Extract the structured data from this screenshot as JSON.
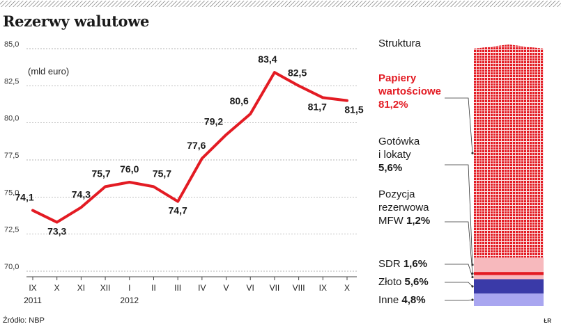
{
  "title": "Rezerwy walutowe",
  "source": "Źródło: NBP",
  "author": "ŁR",
  "colors": {
    "line": "#e31b23",
    "bar_red": "#e31b23",
    "bar_pink": "#f7b9bd",
    "bar_blue": "#a9a6f0",
    "bar_navy": "#3a3aa8",
    "grid": "#9a9a9a"
  },
  "chart_data": [
    {
      "type": "line",
      "unit_label": "(mld euro)",
      "x_labels": [
        "IX",
        "X",
        "XI",
        "XII",
        "I",
        "II",
        "III",
        "IV",
        "V",
        "VI",
        "VII",
        "VIII",
        "IX",
        "X"
      ],
      "year_labels": [
        {
          "index": 0,
          "text": "2011"
        },
        {
          "index": 4,
          "text": "2012"
        }
      ],
      "values": [
        74.1,
        73.3,
        74.3,
        75.7,
        76.0,
        75.7,
        74.7,
        77.6,
        79.2,
        80.6,
        83.4,
        82.5,
        81.7,
        81.5
      ],
      "value_labels": [
        "74,1",
        "73,3",
        "74,3",
        "75,7",
        "76,0",
        "75,7",
        "74,7",
        "77,6",
        "79,2",
        "80,6",
        "83,4",
        "82,5",
        "81,7",
        "81,5"
      ],
      "ylim": [
        70.0,
        85.0
      ],
      "y_ticks": [
        70.0,
        72.5,
        75.0,
        77.5,
        80.0,
        82.5,
        85.0
      ],
      "y_tick_labels": [
        "70,0",
        "72,5",
        "75,0",
        "77,5",
        "80,0",
        "82,5",
        "85,0"
      ],
      "grid": true
    },
    {
      "type": "stacked-bar",
      "title": "Struktura",
      "segments": [
        {
          "name": "Papiery wartościowe",
          "name_lines": [
            "Papiery",
            "wartościowe"
          ],
          "value": 81.2,
          "value_label": "81,2%",
          "color": "#e31b23"
        },
        {
          "name": "Gotówka i lokaty",
          "name_lines": [
            "Gotówka",
            "i lokaty"
          ],
          "value": 5.6,
          "value_label": "5,6%",
          "color": "#f7b9bd"
        },
        {
          "name": "Pozycja rezerwowa MFW",
          "name_lines": [
            "Pozycja",
            "rezerwowa",
            "MFW"
          ],
          "value": 1.2,
          "value_label": "1,2%",
          "color": "#e31b23"
        },
        {
          "name": "SDR",
          "name_lines": [
            "SDR"
          ],
          "value": 1.6,
          "value_label": "1,6%",
          "color": "#f7b9bd"
        },
        {
          "name": "Złoto",
          "name_lines": [
            "Złoto"
          ],
          "value": 5.6,
          "value_label": "5,6%",
          "color": "#3a3aa8"
        },
        {
          "name": "Inne",
          "name_lines": [
            "Inne"
          ],
          "value": 4.8,
          "value_label": "4,8%",
          "color": "#a9a6f0"
        }
      ]
    }
  ]
}
